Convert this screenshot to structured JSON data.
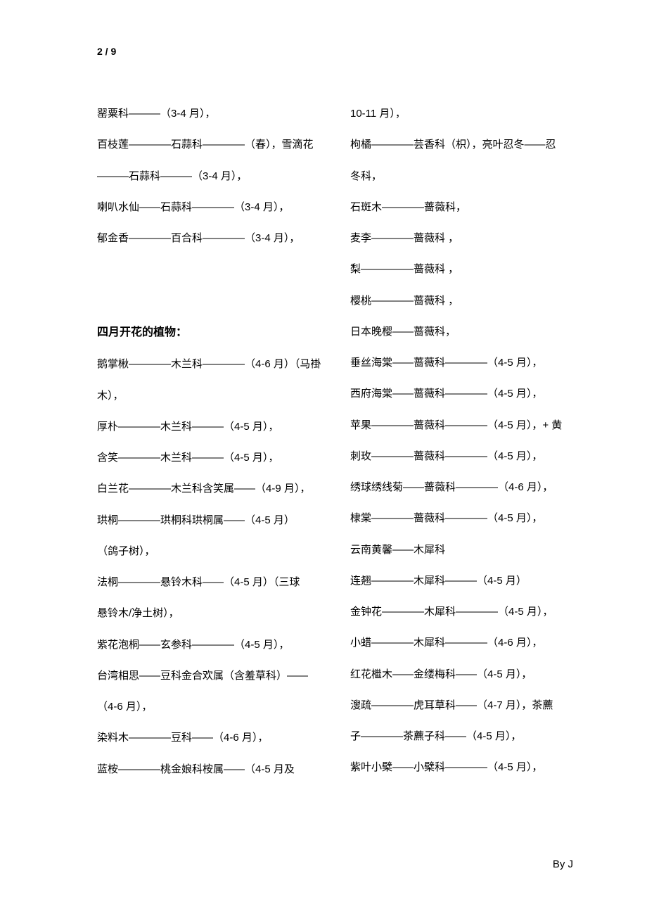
{
  "page_number": "2 / 9",
  "footer": "By    J",
  "left_column": [
    "罂粟科———（3-4 月），",
    " 百枝莲————石蒜科————（春），雪滴花",
    "———石蒜科———（3-4 月），",
    "  喇叭水仙——石蒜科————（3-4 月），",
    "  郁金香————百合科————（3-4 月），"
  ],
  "section_heading": "四月开花的植物：",
  "left_column_after": [
    "  鹅掌楸————木兰科————（4-6 月）（马褂",
    "木），",
    "  厚朴————木兰科———（4-5 月），",
    "  含笑————木兰科———（4-5 月），",
    "  白兰花————木兰科含笑属——（4-9 月），",
    "  珙桐————珙桐科珙桐属——（4-5 月）",
    "（鸽子树），",
    "  法桐————悬铃木科——（4-5 月）（三球",
    "悬铃木/净土树），",
    "  紫花泡桐——玄参科————（4-5 月），",
    "  台湾相思——豆科金合欢属（含羞草科）——",
    "（4-6 月），",
    "  染料木————豆科——（4-6 月），",
    "  蓝桉————桃金娘科桉属——（4-5 月及"
  ],
  "right_column": [
    "10-11 月），",
    "  枸橘————芸香科（枳），亮叶忍冬——忍",
    "冬科，",
    "  石斑木————蔷薇科，",
    "  麦李————蔷薇科 ，",
    "  梨—————蔷薇科 ，",
    "  樱桃————蔷薇科 ，",
    "  日本晚樱——蔷薇科，",
    "  垂丝海棠——蔷薇科————（4-5 月），",
    "  西府海棠——蔷薇科————（4-5 月），",
    "  苹果————蔷薇科————（4-5 月），+ 黄",
    "刺玫————蔷薇科————（4-5 月），",
    "  绣球绣线菊——蔷薇科————（4-6 月），",
    "  棣棠————蔷薇科————（4-5 月），",
    "  云南黄馨——木犀科",
    "  连翘————木犀科———（4-5 月）",
    "  金钟花————木犀科————（4-5 月），",
    "  小蜡————木犀科————（4-6 月），",
    "  红花檵木——金缕梅科——（4-5 月），",
    "  溲疏————虎耳草科——（4-7 月），茶藨",
    "子————茶藨子科——（4-5 月），",
    "  紫叶小檗——小檗科————（4-5 月），"
  ]
}
